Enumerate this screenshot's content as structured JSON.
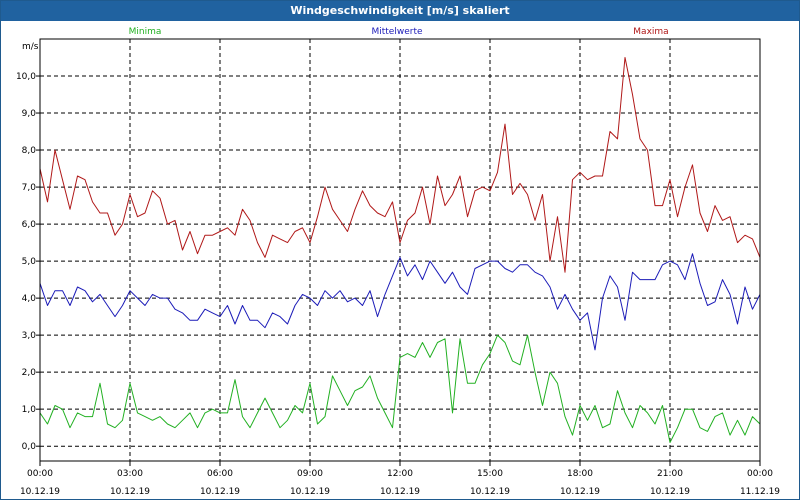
{
  "window": {
    "title": "Windgeschwindigkeit [m/s] skaliert"
  },
  "chart_data": {
    "type": "line",
    "title": "Windgeschwindigkeit [m/s] skaliert",
    "ylabel": "m/s",
    "ylim": [
      -0.4,
      11.0
    ],
    "yticks": [
      "0,0",
      "1,0",
      "2,0",
      "3,0",
      "4,0",
      "5,0",
      "6,0",
      "7,0",
      "8,0",
      "9,0",
      "10,0"
    ],
    "xticks": [
      {
        "time": "00:00",
        "date": "10.12.19"
      },
      {
        "time": "03:00",
        "date": "10.12.19"
      },
      {
        "time": "06:00",
        "date": "10.12.19"
      },
      {
        "time": "09:00",
        "date": "10.12.19"
      },
      {
        "time": "12:00",
        "date": "10.12.19"
      },
      {
        "time": "15:00",
        "date": "10.12.19"
      },
      {
        "time": "18:00",
        "date": "10.12.19"
      },
      {
        "time": "21:00",
        "date": "10.12.19"
      },
      {
        "time": "00:00",
        "date": "11.12.19"
      }
    ],
    "x_range_hours": [
      0,
      24
    ],
    "sample_step_hours": 0.25,
    "grid": true,
    "legend_placement": "top",
    "series": [
      {
        "name": "Minima",
        "color": "#22b022",
        "values": [
          0.9,
          0.6,
          1.1,
          1.0,
          0.5,
          0.9,
          0.8,
          0.8,
          1.7,
          0.6,
          0.5,
          0.7,
          1.7,
          0.9,
          0.8,
          0.7,
          0.8,
          0.6,
          0.5,
          0.7,
          0.9,
          0.5,
          0.9,
          1.0,
          0.9,
          0.9,
          1.8,
          0.8,
          0.5,
          0.9,
          1.3,
          0.9,
          0.5,
          0.7,
          1.1,
          0.9,
          1.7,
          0.6,
          0.8,
          1.9,
          1.5,
          1.1,
          1.5,
          1.6,
          1.9,
          1.3,
          0.9,
          0.5,
          2.4,
          2.5,
          2.4,
          2.8,
          2.4,
          2.8,
          2.9,
          0.9,
          2.9,
          1.7,
          1.7,
          2.2,
          2.5,
          3.0,
          2.8,
          2.3,
          2.2,
          3.0,
          2.0,
          1.1,
          2.0,
          1.7,
          0.8,
          0.3,
          1.1,
          0.7,
          1.1,
          0.5,
          0.6,
          1.5,
          0.9,
          0.5,
          1.1,
          0.9,
          0.6,
          1.1,
          0.1,
          0.5,
          1.0,
          1.0,
          0.5,
          0.4,
          0.8,
          0.9,
          0.3,
          0.7,
          0.3,
          0.8,
          0.6,
          0.7,
          1.0,
          0.5,
          0.5,
          0.7,
          0.4,
          0.8,
          0.8,
          0.9,
          0.8,
          0.3,
          0.4,
          0.5,
          0.5,
          0.3,
          0.1,
          0.5,
          0.4,
          0.3,
          0.4,
          0.3,
          0.4,
          0.5,
          0.4,
          0.4,
          0.3,
          0.6,
          0.6,
          0.8,
          1.2,
          1.2,
          0.8,
          0.6,
          0.7,
          0.6,
          0.7,
          0.7,
          0.4,
          0.4,
          0.7,
          0.4,
          0.3,
          0.4,
          0.5,
          0.8,
          1.3,
          0.7,
          0.5,
          0.6,
          0.5,
          0.5,
          0.4,
          1.1,
          1.8,
          0.4,
          0.4,
          0.3,
          0.3,
          0.5,
          0.4,
          0.3,
          0.6,
          0.6,
          0.7,
          1.0,
          1.0,
          1.2,
          1.3,
          1.1,
          0.9,
          0.6
        ]
      },
      {
        "name": "Mittelwerte",
        "color": "#1c1cb8",
        "values": [
          4.4,
          3.8,
          4.2,
          4.2,
          3.8,
          4.3,
          4.2,
          3.9,
          4.1,
          3.8,
          3.5,
          3.8,
          4.2,
          4.0,
          3.8,
          4.1,
          4.0,
          4.0,
          3.7,
          3.6,
          3.4,
          3.4,
          3.7,
          3.6,
          3.5,
          3.8,
          3.3,
          3.8,
          3.4,
          3.4,
          3.2,
          3.6,
          3.5,
          3.3,
          3.8,
          4.1,
          4.0,
          3.8,
          4.2,
          4.0,
          4.2,
          3.9,
          4.0,
          3.8,
          4.2,
          3.5,
          4.1,
          4.6,
          5.1,
          4.6,
          4.9,
          4.5,
          5.0,
          4.7,
          4.4,
          4.7,
          4.3,
          4.1,
          4.8,
          4.9,
          5.0,
          5.0,
          4.8,
          4.7,
          4.9,
          4.9,
          4.7,
          4.6,
          4.3,
          3.7,
          4.1,
          3.7,
          3.4,
          3.6,
          2.6,
          4.0,
          4.6,
          4.3,
          3.4,
          4.7,
          4.5,
          4.5,
          4.5,
          4.9,
          5.0,
          4.9,
          4.5,
          5.2,
          4.4,
          3.8,
          3.9,
          4.5,
          4.1,
          3.3,
          4.3,
          3.7,
          4.1,
          4.0,
          3.7,
          3.3,
          3.0,
          2.9,
          2.7,
          2.8,
          2.7,
          3.3,
          2.8,
          3.1,
          3.4,
          2.8,
          3.2,
          3.1,
          3.3,
          3.4,
          3.1,
          3.8,
          3.4,
          3.3,
          3.2,
          5.0,
          4.4,
          4.4,
          5.2,
          4.3,
          4.0,
          3.8,
          3.7,
          4.4,
          3.8,
          4.2,
          3.5,
          4.2,
          4.1,
          3.7,
          3.8,
          3.4,
          3.6,
          3.6,
          3.4,
          3.8,
          4.1,
          4.4,
          4.6,
          4.4,
          4.0,
          3.7,
          4.0,
          4.0,
          3.4,
          3.4,
          3.4,
          3.7,
          3.9,
          3.2,
          3.1,
          3.8,
          3.7,
          4.3,
          4.5,
          5.0,
          4.8,
          4.9,
          4.9,
          5.2,
          5.1,
          5.1,
          5.0,
          4.8
        ]
      },
      {
        "name": "Maxima",
        "color": "#b01818",
        "values": [
          7.5,
          6.6,
          8.0,
          7.2,
          6.4,
          7.3,
          7.2,
          6.6,
          6.3,
          6.3,
          5.7,
          6.0,
          6.8,
          6.2,
          6.3,
          6.9,
          6.7,
          6.0,
          6.1,
          5.3,
          5.8,
          5.2,
          5.7,
          5.7,
          5.8,
          5.9,
          5.7,
          6.4,
          6.1,
          5.5,
          5.1,
          5.7,
          5.6,
          5.5,
          5.8,
          5.9,
          5.5,
          6.2,
          7.0,
          6.4,
          6.1,
          5.8,
          6.4,
          6.9,
          6.5,
          6.3,
          6.2,
          6.6,
          5.5,
          6.1,
          6.3,
          7.0,
          6.0,
          7.3,
          6.5,
          6.8,
          7.3,
          6.2,
          6.9,
          7.0,
          6.9,
          7.4,
          8.7,
          6.8,
          7.1,
          6.8,
          6.1,
          6.8,
          5.0,
          6.2,
          4.7,
          7.2,
          7.4,
          7.2,
          7.3,
          7.3,
          8.5,
          8.3,
          10.5,
          9.5,
          8.3,
          8.0,
          6.5,
          6.5,
          7.2,
          6.2,
          7.0,
          7.6,
          6.3,
          5.8,
          6.5,
          6.1,
          6.2,
          5.5,
          5.7,
          5.6,
          5.1,
          4.6,
          4.5,
          5.8,
          6.2,
          5.9,
          5.1,
          6.1,
          6.7,
          5.9,
          5.1,
          5.6,
          5.9,
          5.0,
          5.6,
          5.8,
          5.3,
          6.2,
          5.6,
          8.1,
          7.8,
          8.1,
          9.5,
          8.2,
          7.3,
          7.2,
          6.2,
          6.1,
          6.9,
          6.6,
          6.6,
          6.3,
          5.7,
          5.3,
          5.8,
          5.9,
          6.1,
          6.9,
          7.2,
          6.9,
          6.1,
          5.3,
          5.3,
          5.8,
          5.2,
          5.6,
          5.6,
          6.5,
          7.7,
          7.7,
          6.4,
          6.0,
          6.7,
          6.2,
          5.4,
          5.1,
          5.7,
          5.7,
          6.1,
          6.0,
          6.0,
          6.0,
          7.1,
          8.0,
          8.0,
          9.7,
          8.1,
          7.6,
          8.9,
          10.1,
          6.9,
          7.3
        ]
      }
    ]
  }
}
